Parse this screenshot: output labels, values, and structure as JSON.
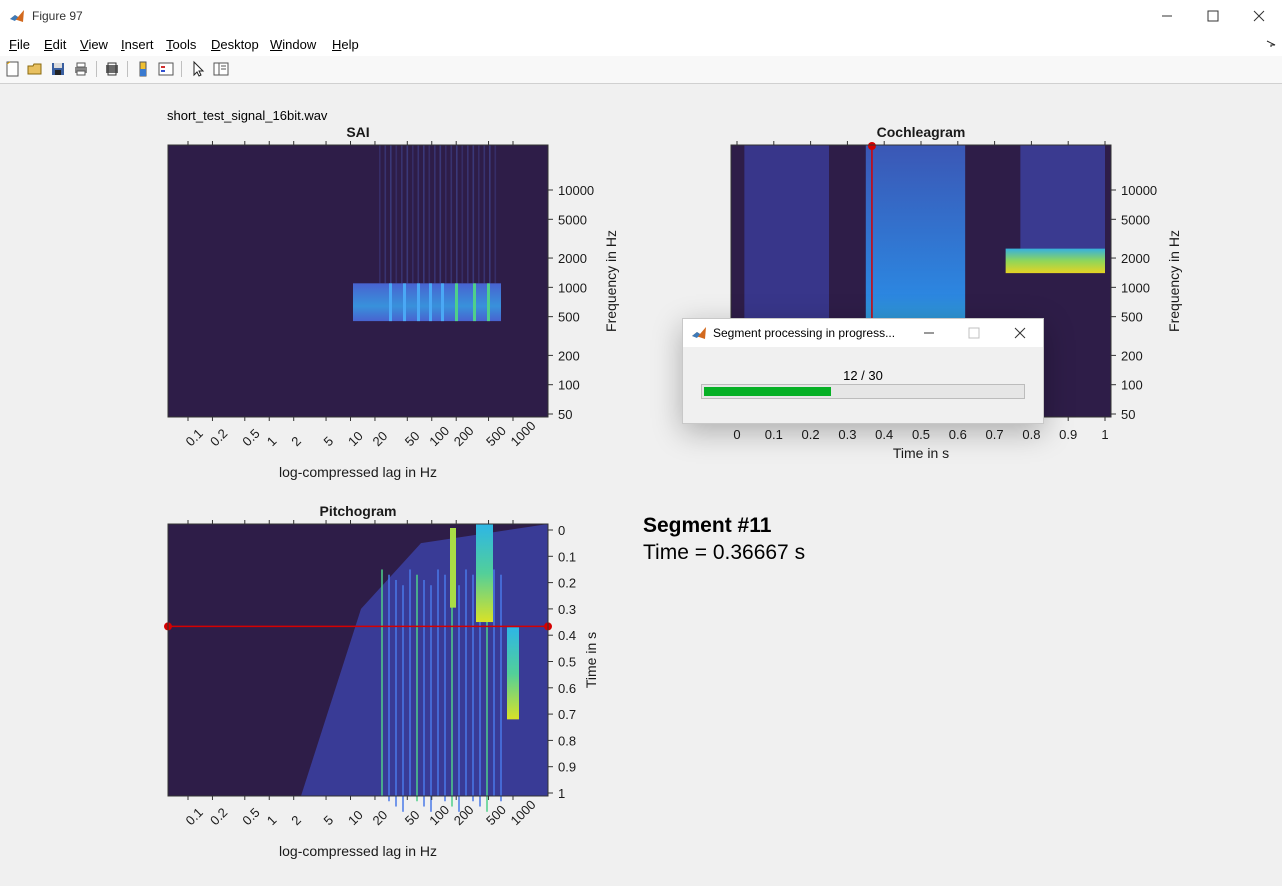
{
  "window": {
    "title": "Figure 97",
    "controls": {
      "minimize": "minimize-icon",
      "maximize": "maximize-icon",
      "close": "close-icon"
    }
  },
  "menubar": {
    "items": [
      {
        "label": "File",
        "mnemonic": "F",
        "rest": "ile"
      },
      {
        "label": "Edit",
        "mnemonic": "E",
        "rest": "dit"
      },
      {
        "label": "View",
        "mnemonic": "V",
        "rest": "iew"
      },
      {
        "label": "Insert",
        "mnemonic": "I",
        "rest": "nsert"
      },
      {
        "label": "Tools",
        "mnemonic": "T",
        "rest": "ools"
      },
      {
        "label": "Desktop",
        "mnemonic": "D",
        "rest": "esktop"
      },
      {
        "label": "Window",
        "mnemonic": "W",
        "rest": "indow"
      },
      {
        "label": "Help",
        "mnemonic": "H",
        "rest": "elp"
      }
    ]
  },
  "toolbar": {
    "icons": [
      "new-figure-icon",
      "open-file-icon",
      "save-icon",
      "print-icon",
      "print-preview-icon",
      "colorbar-icon",
      "legend-icon",
      "edit-plot-icon",
      "property-inspector-icon"
    ]
  },
  "figure": {
    "filename": "short_test_signal_16bit.wav",
    "info": {
      "segment": "Segment #11",
      "time": "Time = 0.36667 s"
    }
  },
  "colors": {
    "bg_dark": "#2e1d48",
    "marker_red": "#d50000",
    "progress_green": "#06b025"
  },
  "chart_data": [
    {
      "type": "heatmap",
      "title": "SAI",
      "xlabel": "log-compressed lag in Hz",
      "ylabel": "Frequency in Hz",
      "x_ticks": [
        "0.1",
        "0.2",
        "0.5",
        "1",
        "2",
        "5",
        "10",
        "20",
        "50",
        "100",
        "200",
        "500",
        "1000"
      ],
      "y_ticks": [
        "10000",
        "5000",
        "2000",
        "1000",
        "500",
        "200",
        "100",
        "50"
      ],
      "yscale": "log",
      "colormap": "parula-like",
      "activity_band_hz": [
        450,
        1100
      ]
    },
    {
      "type": "heatmap",
      "title": "Cochleagram",
      "xlabel": "Time in s",
      "ylabel": "Frequency in Hz",
      "x_ticks": [
        "0",
        "0.1",
        "0.2",
        "0.3",
        "0.4",
        "0.5",
        "0.6",
        "0.7",
        "0.8",
        "0.9",
        "1"
      ],
      "y_ticks": [
        "10000",
        "5000",
        "2000",
        "1000",
        "500",
        "200",
        "100",
        "50"
      ],
      "xlim": [
        0,
        1
      ],
      "yscale": "log",
      "cursor_time_s": 0.36667
    },
    {
      "type": "heatmap",
      "title": "Pitchogram",
      "xlabel": "log-compressed lag in Hz",
      "ylabel": "Time in s",
      "x_ticks": [
        "0.1",
        "0.2",
        "0.5",
        "1",
        "2",
        "5",
        "10",
        "20",
        "50",
        "100",
        "200",
        "500",
        "1000"
      ],
      "y_ticks": [
        "0",
        "0.1",
        "0.2",
        "0.3",
        "0.4",
        "0.5",
        "0.6",
        "0.7",
        "0.8",
        "0.9",
        "1"
      ],
      "ylim": [
        0,
        1
      ],
      "cursor_time_s": 0.36667
    }
  ],
  "dialog": {
    "title": "Segment processing in progress...",
    "progress_text": "12 / 30",
    "progress_value": 12,
    "progress_max": 30
  }
}
